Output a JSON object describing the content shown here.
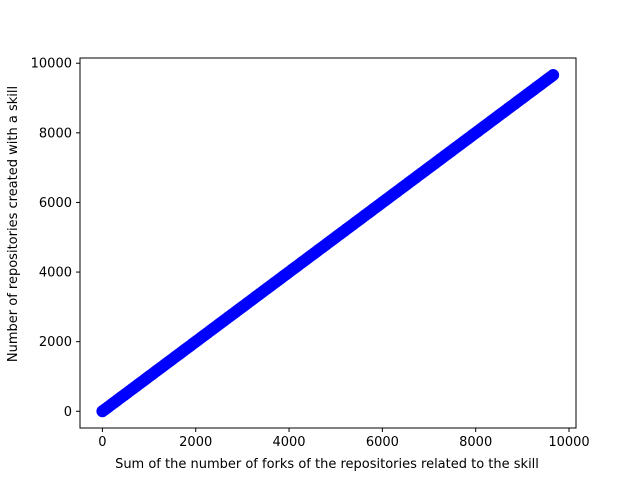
{
  "chart_data": {
    "type": "scatter",
    "title": "",
    "xlabel": "Sum of the number of forks of the repositories related to the skill",
    "ylabel": "Number of repositories created with a skill",
    "xlim": [
      -480,
      10150
    ],
    "ylim": [
      -480,
      10150
    ],
    "xticks": [
      0,
      2000,
      4000,
      6000,
      8000,
      10000
    ],
    "yticks": [
      0,
      2000,
      4000,
      6000,
      8000,
      10000
    ],
    "xtick_labels": [
      "0",
      "2000",
      "4000",
      "6000",
      "8000",
      "10000"
    ],
    "ytick_labels": [
      "0",
      "2000",
      "4000",
      "6000",
      "8000",
      "10000"
    ],
    "grid": false,
    "legend": false,
    "marker_color": "#0000ff",
    "series": [
      {
        "x_start": 0,
        "x_end": 9660,
        "relation": "y = x",
        "note_points": "dense points along y = x from 0 to ~9660"
      }
    ]
  }
}
